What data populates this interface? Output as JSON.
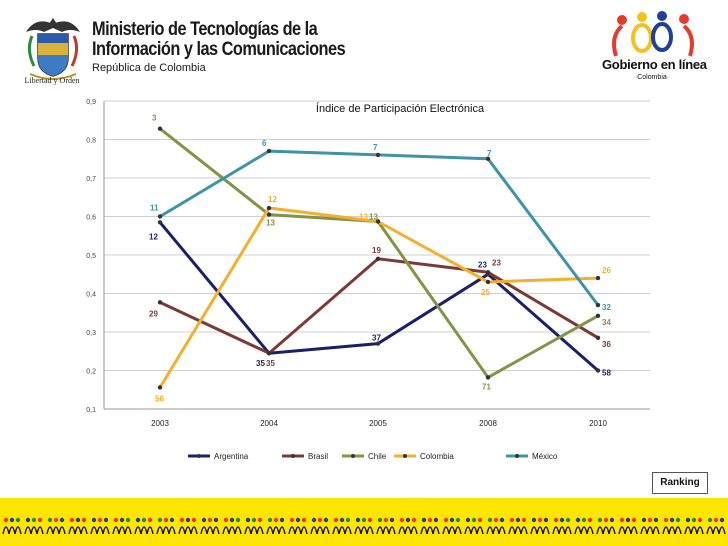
{
  "header": {
    "ministry_line1": "Ministerio de Tecnologías de la",
    "ministry_line2": "Información y las Comunicaciones",
    "ministry_line3": "República de Colombia",
    "seal_motto": "Libertad y Orden",
    "gel_title": "Gobierno en línea",
    "gel_subtitle": "·Colombia·"
  },
  "badge": {
    "label": "Ranking"
  },
  "colors": {
    "argentina": "#1a1f6b",
    "brasil": "#7a3a36",
    "chile": "#839447",
    "colombia": "#f2b02e",
    "mexico": "#3d93aa",
    "band": "#ffe600"
  },
  "chart_data": {
    "type": "line",
    "title": "Índice de Participación Electrónica",
    "xlabel": "",
    "ylabel": "",
    "categories": [
      "2003",
      "2004",
      "2005",
      "2008",
      "2010"
    ],
    "ylim": [
      0.1,
      0.9
    ],
    "yticks": [
      "0,1",
      "0,2",
      "0,3",
      "0,4",
      "0,5",
      "0,6",
      "0,7",
      "0,8",
      "0,9"
    ],
    "grid": true,
    "legend_position": "bottom",
    "series": [
      {
        "name": "Argentina",
        "color": "#1a1f6b",
        "values": [
          0.585,
          0.245,
          0.27,
          0.45,
          0.2
        ],
        "ranks": [
          "12",
          "35",
          "37",
          "23",
          "58"
        ]
      },
      {
        "name": "Brasil",
        "color": "#7a3a36",
        "values": [
          0.377,
          0.245,
          0.49,
          0.455,
          0.285
        ],
        "ranks": [
          "29",
          "35",
          "19",
          "23",
          "36"
        ]
      },
      {
        "name": "Chile",
        "color": "#839447",
        "values": [
          0.828,
          0.605,
          0.587,
          0.182,
          0.342
        ],
        "ranks": [
          "3",
          "13",
          "13",
          "71",
          "34"
        ]
      },
      {
        "name": "Colombia",
        "color": "#f2b02e",
        "values": [
          0.156,
          0.622,
          0.587,
          0.43,
          0.44
        ],
        "ranks": [
          "56",
          "12",
          "13",
          "25",
          "26"
        ]
      },
      {
        "name": "México",
        "color": "#3d93aa",
        "values": [
          0.6,
          0.77,
          0.76,
          0.75,
          0.37
        ],
        "ranks": [
          "11",
          "6",
          "7",
          "7",
          "32"
        ]
      }
    ]
  }
}
